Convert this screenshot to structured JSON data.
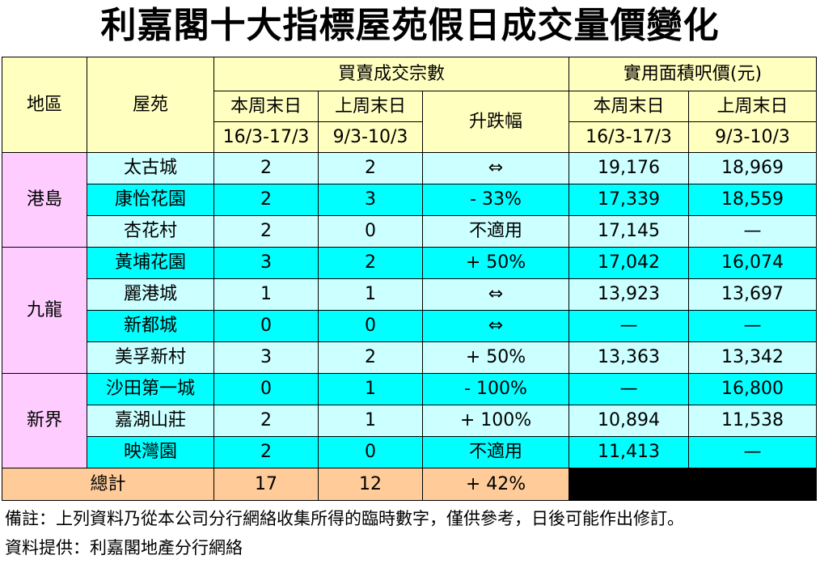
{
  "title": "利嘉閣十大指標屋苑假日成交量價變化",
  "headers": {
    "district": "地區",
    "estate": "屋苑",
    "transactions_group": "買賣成交宗數",
    "price_group": "實用面積呎價(元)",
    "this_weekend": "本周末日",
    "this_weekend_dates": "16/3-17/3",
    "last_weekend": "上周末日",
    "last_weekend_dates": "9/3-10/3",
    "change": "升跌幅"
  },
  "regions": [
    "港島",
    "九龍",
    "新界"
  ],
  "rows": [
    {
      "estate": "太古城",
      "cur": "2",
      "prev": "2",
      "change": "⇔",
      "price_cur": "19,176",
      "price_prev": "18,969"
    },
    {
      "estate": "康怡花園",
      "cur": "2",
      "prev": "3",
      "change": "- 33%",
      "price_cur": "17,339",
      "price_prev": "18,559"
    },
    {
      "estate": "杏花村",
      "cur": "2",
      "prev": "0",
      "change": "不適用",
      "price_cur": "17,145",
      "price_prev": "—"
    },
    {
      "estate": "黃埔花園",
      "cur": "3",
      "prev": "2",
      "change": "+ 50%",
      "price_cur": "17,042",
      "price_prev": "16,074"
    },
    {
      "estate": "麗港城",
      "cur": "1",
      "prev": "1",
      "change": "⇔",
      "price_cur": "13,923",
      "price_prev": "13,697"
    },
    {
      "estate": "新都城",
      "cur": "0",
      "prev": "0",
      "change": "⇔",
      "price_cur": "—",
      "price_prev": "—"
    },
    {
      "estate": "美孚新村",
      "cur": "3",
      "prev": "2",
      "change": "+ 50%",
      "price_cur": "13,363",
      "price_prev": "13,342"
    },
    {
      "estate": "沙田第一城",
      "cur": "0",
      "prev": "1",
      "change": "- 100%",
      "price_cur": "—",
      "price_prev": "16,800"
    },
    {
      "estate": "嘉湖山莊",
      "cur": "2",
      "prev": "1",
      "change": "+ 100%",
      "price_cur": "10,894",
      "price_prev": "11,538"
    },
    {
      "estate": "映灣園",
      "cur": "2",
      "prev": "0",
      "change": "不適用",
      "price_cur": "11,413",
      "price_prev": "—"
    }
  ],
  "total": {
    "label": "總計",
    "cur": "17",
    "prev": "12",
    "change": "+ 42%"
  },
  "notes": {
    "remark": "備註：上列資料乃從本公司分行網絡收集所得的臨時數字，僅供參考，日後可能作出修訂。",
    "source": "資料提供：利嘉閣地產分行網絡"
  }
}
